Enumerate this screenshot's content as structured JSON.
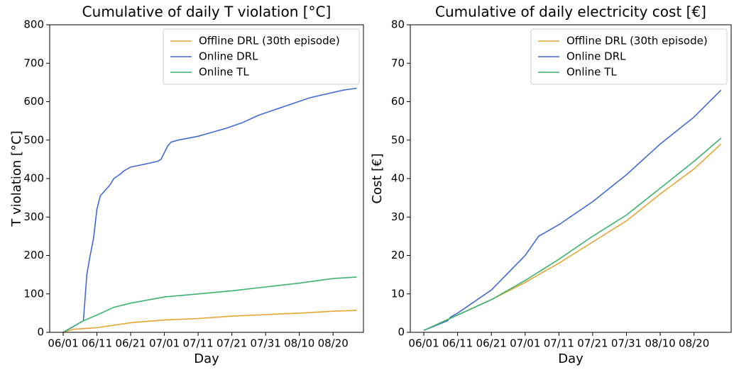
{
  "chart_data": [
    {
      "type": "line",
      "title": "Cumulative of daily T violation [°C]",
      "x_label": "Day",
      "y_label": "T violation [°C]",
      "xlim": [
        "05/28",
        "08/29"
      ],
      "xticks": [
        "06/01",
        "06/11",
        "06/21",
        "07/01",
        "07/11",
        "07/21",
        "07/31",
        "08/10",
        "08/20"
      ],
      "ylim": [
        0,
        800
      ],
      "yticks": [
        0,
        100,
        200,
        300,
        400,
        500,
        600,
        700,
        800
      ],
      "legend": "upper right",
      "series": [
        {
          "name": "Offline DRL (30th episode)",
          "color": "#e6a532",
          "x": [
            "06/01",
            "06/04",
            "06/11",
            "06/21",
            "07/01",
            "07/11",
            "07/21",
            "07/31",
            "08/10",
            "08/20",
            "08/27"
          ],
          "values": [
            0,
            8,
            12,
            25,
            32,
            36,
            42,
            46,
            50,
            55,
            57
          ]
        },
        {
          "name": "Online DRL",
          "color": "#4169d6",
          "x": [
            "06/01",
            "06/07",
            "06/08",
            "06/09",
            "06/10",
            "06/11",
            "06/12",
            "06/14",
            "06/15",
            "06/16",
            "06/18",
            "06/19",
            "06/21",
            "06/25",
            "06/29",
            "06/30",
            "07/02",
            "07/03",
            "07/05",
            "07/11",
            "07/15",
            "07/19",
            "07/24",
            "07/29",
            "08/03",
            "08/08",
            "08/13",
            "08/18",
            "08/23",
            "08/27"
          ],
          "values": [
            0,
            30,
            150,
            200,
            245,
            320,
            355,
            375,
            385,
            400,
            412,
            420,
            430,
            437,
            445,
            450,
            485,
            495,
            500,
            510,
            520,
            530,
            545,
            565,
            580,
            595,
            610,
            620,
            630,
            635
          ]
        },
        {
          "name": "Online TL",
          "color": "#3cb371",
          "x": [
            "06/01",
            "06/07",
            "06/11",
            "06/16",
            "06/21",
            "07/01",
            "07/11",
            "07/21",
            "07/31",
            "08/10",
            "08/20",
            "08/27"
          ],
          "values": [
            0,
            30,
            45,
            65,
            76,
            92,
            100,
            108,
            118,
            128,
            140,
            144
          ]
        }
      ]
    },
    {
      "type": "line",
      "title": "Cumulative of daily electricity cost [€]",
      "x_label": "Day",
      "y_label": "Cost [€]",
      "xlim": [
        "05/28",
        "08/31"
      ],
      "xticks": [
        "06/01",
        "06/11",
        "06/21",
        "07/01",
        "07/11",
        "07/21",
        "07/31",
        "08/10",
        "08/20"
      ],
      "ylim": [
        0,
        80
      ],
      "yticks": [
        0,
        10,
        20,
        30,
        40,
        50,
        60,
        70,
        80
      ],
      "legend": "upper right",
      "series": [
        {
          "name": "Offline DRL (30th episode)",
          "color": "#e6a532",
          "x": [
            "06/01",
            "06/11",
            "06/21",
            "07/01",
            "07/11",
            "07/21",
            "07/31",
            "08/10",
            "08/20",
            "08/28"
          ],
          "values": [
            0.5,
            4.5,
            8.5,
            13,
            18,
            23.5,
            29,
            36,
            42.5,
            49
          ]
        },
        {
          "name": "Online DRL",
          "color": "#4169d6",
          "x": [
            "06/01",
            "06/08",
            "06/09",
            "06/11",
            "06/21",
            "07/01",
            "07/05",
            "07/11",
            "07/21",
            "07/31",
            "08/10",
            "08/20",
            "08/28"
          ],
          "values": [
            0.5,
            3,
            4,
            5,
            11,
            20,
            25,
            28,
            34,
            41,
            49,
            56,
            63
          ]
        },
        {
          "name": "Online TL",
          "color": "#3cb371",
          "x": [
            "06/01",
            "06/11",
            "06/21",
            "07/01",
            "07/11",
            "07/21",
            "07/31",
            "08/10",
            "08/20",
            "08/28"
          ],
          "values": [
            0.5,
            4.5,
            8.5,
            13.5,
            19,
            25,
            30.5,
            37.5,
            44.5,
            50.5
          ]
        }
      ]
    }
  ]
}
